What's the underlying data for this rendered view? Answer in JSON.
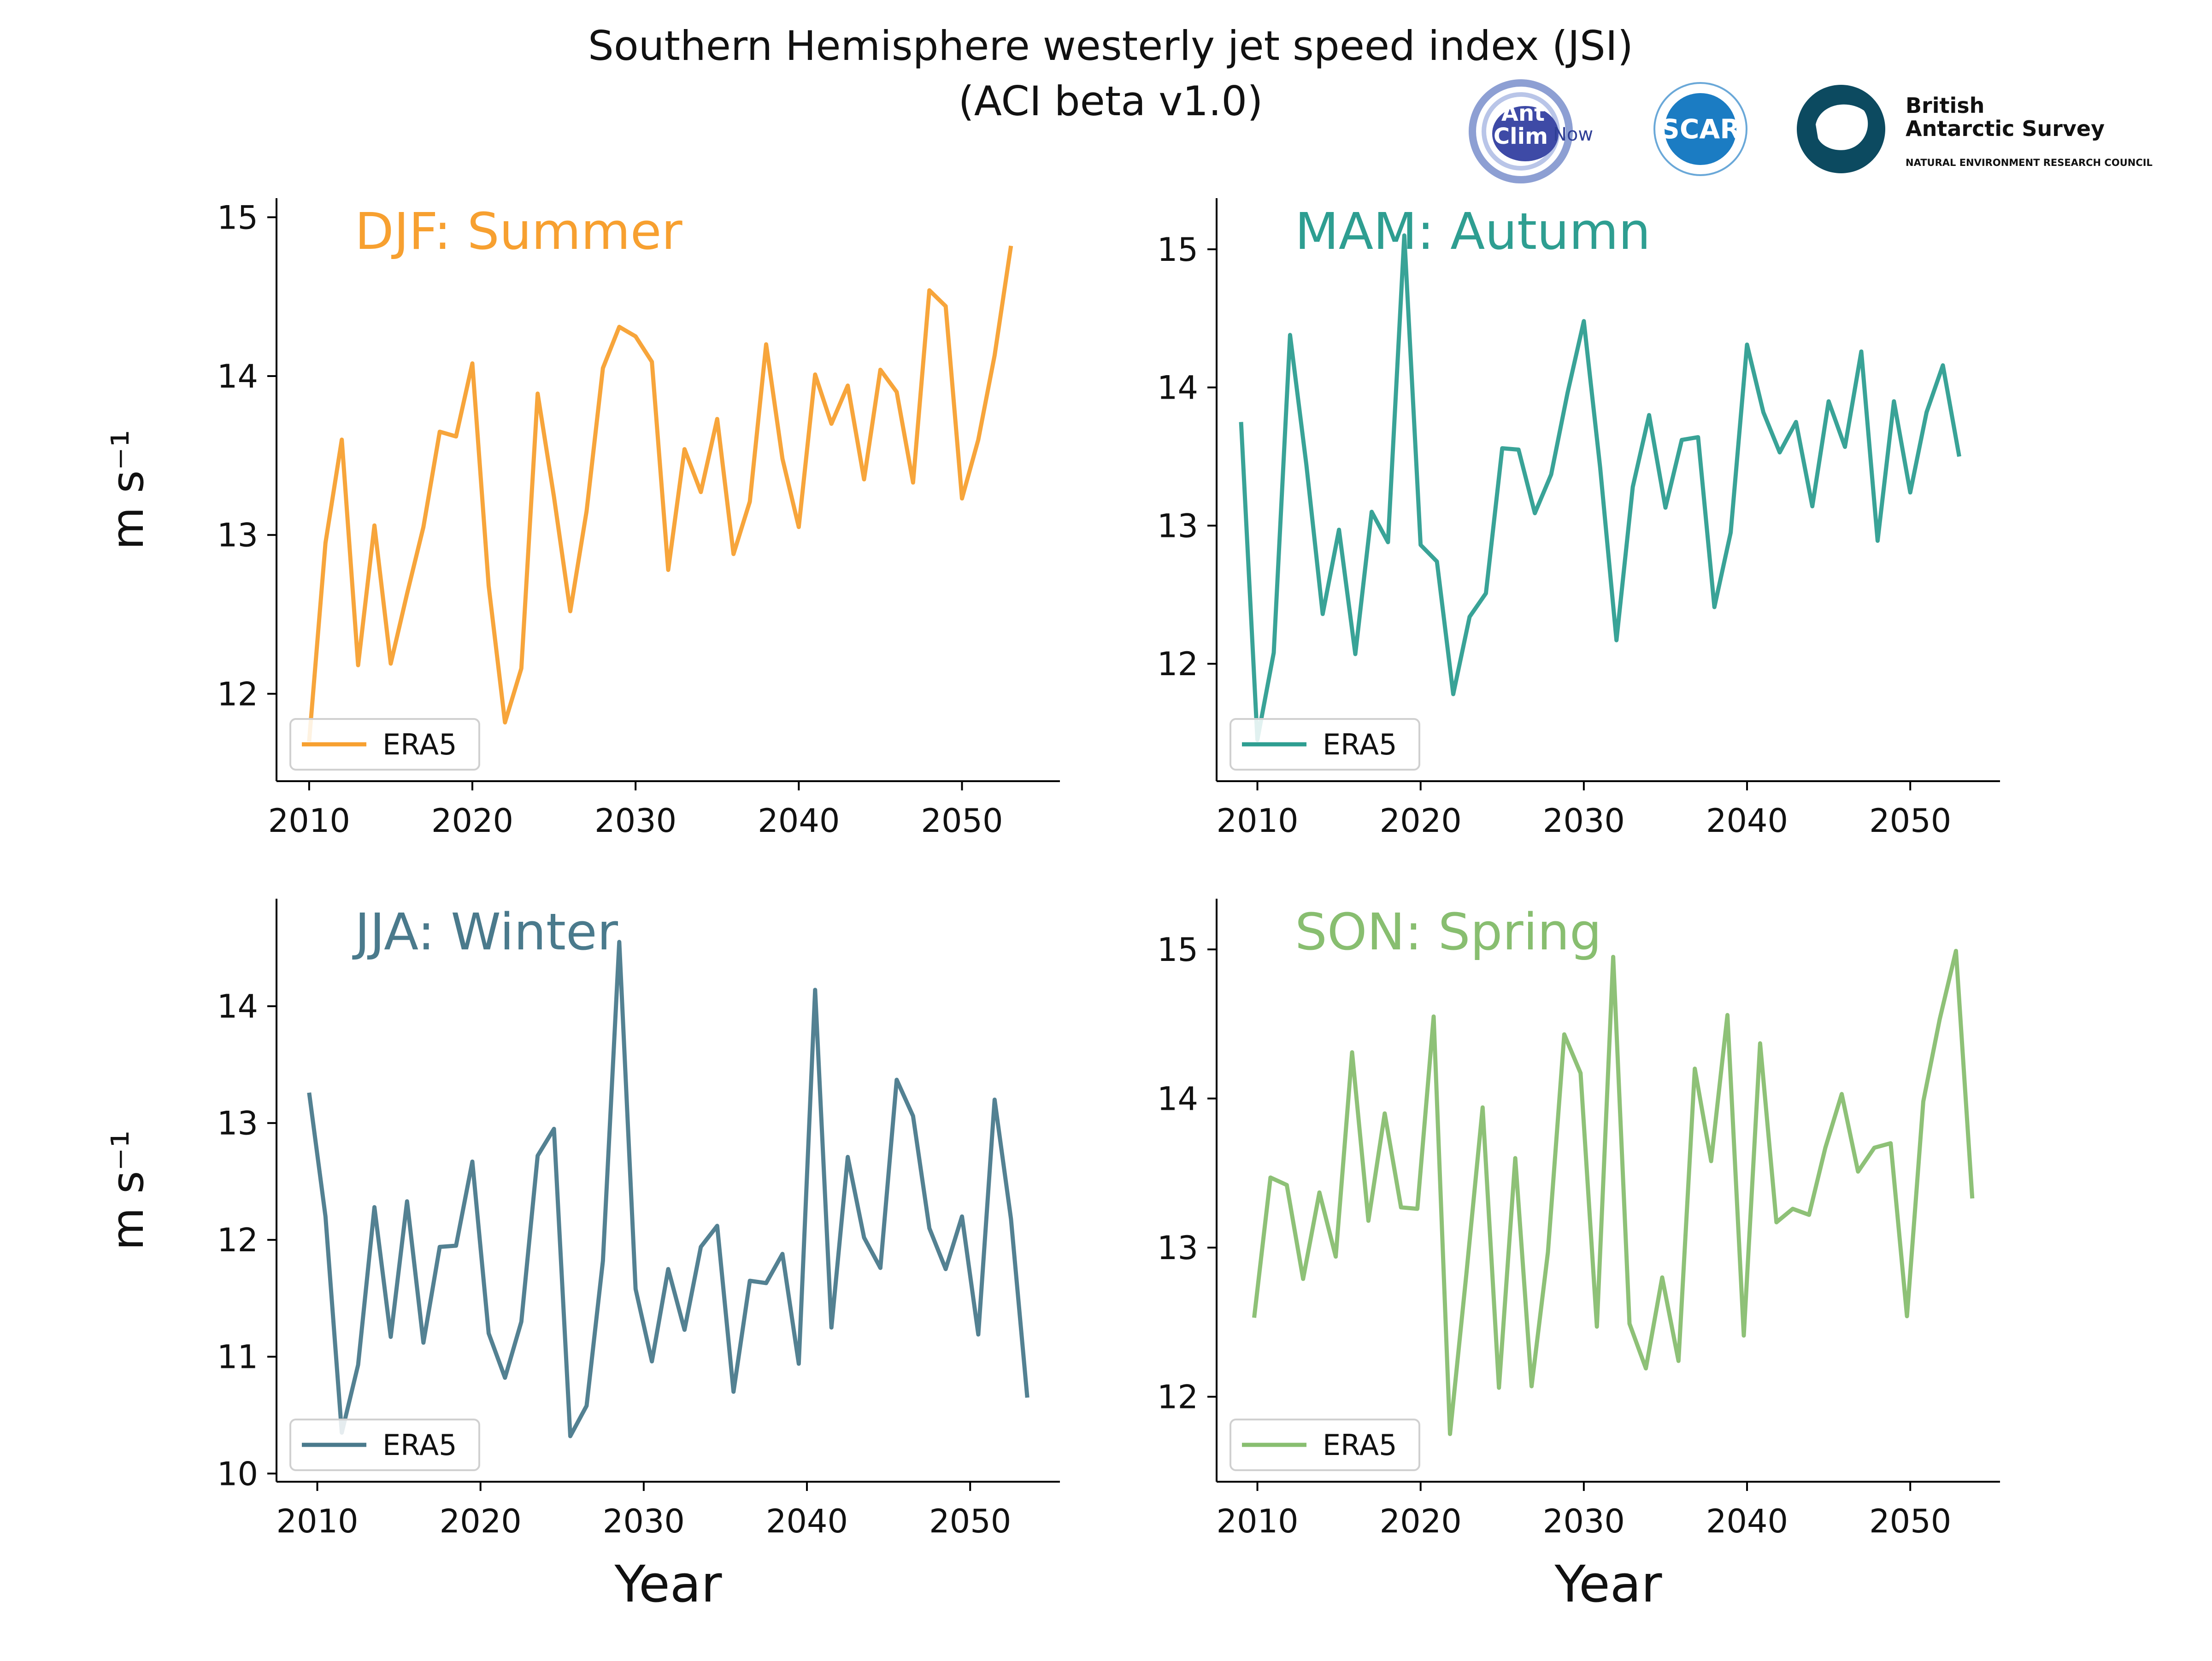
{
  "figure": {
    "title_line1": "Southern Hemisphere westerly jet speed index (JSI)",
    "title_line2": "(ACI beta v1.0)"
  },
  "logos": {
    "antclim": {
      "line1": "Ant",
      "line2": "Clim",
      "suffix": "Now"
    },
    "scar": {
      "text": "SCAR"
    },
    "bas": {
      "line1": "British",
      "line2": "Antarctic Survey",
      "line3": "NATURAL ENVIRONMENT RESEARCH COUNCIL"
    }
  },
  "chart_data": [
    {
      "type": "line",
      "title": "DJF: Summer",
      "color": "#f7a030",
      "xlabel": "",
      "ylabel": "m s⁻¹",
      "xlim": [
        2008,
        2056
      ],
      "ylim": [
        11.45,
        15.12
      ],
      "xticks": [
        2010,
        2020,
        2030,
        2040,
        2050
      ],
      "yticks": [
        12,
        13,
        14,
        15
      ],
      "legend": "lower-left",
      "series": [
        {
          "name": "ERA5",
          "x": [
            2010,
            2011,
            2012,
            2013,
            2014,
            2015,
            2016,
            2017,
            2018,
            2019,
            2020,
            2021,
            2022,
            2023,
            2024,
            2025,
            2026,
            2027,
            2028,
            2029,
            2030,
            2031,
            2032,
            2033,
            2034,
            2035,
            2036,
            2037,
            2038,
            2039,
            2040,
            2041,
            2042,
            2043,
            2044,
            2045,
            2046,
            2047,
            2048,
            2049,
            2050,
            2051,
            2052,
            2053
          ],
          "y": [
            11.7,
            12.95,
            13.6,
            12.18,
            13.06,
            12.19,
            12.63,
            13.05,
            13.65,
            13.62,
            14.08,
            12.68,
            11.82,
            12.16,
            13.89,
            13.24,
            12.52,
            13.15,
            14.05,
            14.31,
            14.25,
            14.09,
            12.78,
            13.54,
            13.27,
            13.73,
            12.88,
            13.21,
            14.2,
            13.48,
            13.05,
            14.01,
            13.7,
            13.94,
            13.35,
            14.04,
            13.9,
            13.33,
            14.54,
            14.44,
            13.23,
            13.6,
            14.13,
            14.82
          ]
        }
      ]
    },
    {
      "type": "line",
      "title": "MAM: Autumn",
      "color": "#2e9e91",
      "xlabel": "",
      "ylabel": "",
      "xlim": [
        2007.5,
        2055.5
      ],
      "ylim": [
        11.15,
        15.37
      ],
      "xticks": [
        2010,
        2020,
        2030,
        2040,
        2050
      ],
      "yticks": [
        12,
        13,
        14,
        15
      ],
      "legend": "lower-left",
      "series": [
        {
          "name": "ERA5",
          "x": [
            2009,
            2010,
            2011,
            2012,
            2013,
            2014,
            2015,
            2016,
            2017,
            2018,
            2019,
            2020,
            2021,
            2022,
            2023,
            2024,
            2025,
            2026,
            2027,
            2028,
            2029,
            2030,
            2031,
            2032,
            2033,
            2034,
            2035,
            2036,
            2037,
            2038,
            2039,
            2040,
            2041,
            2042,
            2043,
            2044,
            2045,
            2046,
            2047,
            2048,
            2049,
            2050,
            2051,
            2052,
            2053
          ],
          "y": [
            13.75,
            11.45,
            12.08,
            14.38,
            13.44,
            12.36,
            12.97,
            12.07,
            13.1,
            12.88,
            15.1,
            12.86,
            12.74,
            11.78,
            12.34,
            12.51,
            13.56,
            13.55,
            13.09,
            13.37,
            13.96,
            14.48,
            13.42,
            12.17,
            13.28,
            13.8,
            13.13,
            13.62,
            13.64,
            12.41,
            12.95,
            14.31,
            13.82,
            13.53,
            13.75,
            13.14,
            13.9,
            13.57,
            14.26,
            12.89,
            13.9,
            13.24,
            13.82,
            14.16,
            13.5
          ]
        }
      ]
    },
    {
      "type": "line",
      "title": "JJA: Winter",
      "color": "#4a7a8c",
      "xlabel": "Year",
      "ylabel": "m s⁻¹",
      "xlim": [
        2007.5,
        2055.5
      ],
      "ylim": [
        9.93,
        14.92
      ],
      "xticks": [
        2010,
        2020,
        2030,
        2040,
        2050
      ],
      "yticks": [
        10,
        11,
        12,
        13,
        14
      ],
      "legend": "lower-left",
      "series": [
        {
          "name": "ERA5",
          "x": [
            2009.5,
            2010.5,
            2011.5,
            2012.5,
            2013.5,
            2014.5,
            2015.5,
            2016.5,
            2017.5,
            2018.5,
            2019.5,
            2020.5,
            2021.5,
            2022.5,
            2023.5,
            2024.5,
            2025.5,
            2026.5,
            2027.5,
            2028.5,
            2029.5,
            2030.5,
            2031.5,
            2032.5,
            2033.5,
            2034.5,
            2035.5,
            2036.5,
            2037.5,
            2038.5,
            2039.5,
            2040.5,
            2041.5,
            2042.5,
            2043.5,
            2044.5,
            2045.5,
            2046.5,
            2047.5,
            2048.5,
            2049.5,
            2050.5,
            2051.5,
            2052.5,
            2053.5
          ],
          "y": [
            13.26,
            12.2,
            10.35,
            10.93,
            12.28,
            11.17,
            12.33,
            11.12,
            11.94,
            11.95,
            12.67,
            11.2,
            10.82,
            11.3,
            12.72,
            12.95,
            10.32,
            10.58,
            11.82,
            14.55,
            11.58,
            10.96,
            11.75,
            11.23,
            11.94,
            12.12,
            10.7,
            11.65,
            11.63,
            11.88,
            10.94,
            14.14,
            11.25,
            12.71,
            12.02,
            11.76,
            13.37,
            13.06,
            12.1,
            11.75,
            12.2,
            11.19,
            13.2,
            12.18,
            10.65
          ]
        }
      ]
    },
    {
      "type": "line",
      "title": "SON: Spring",
      "color": "#88be70",
      "xlabel": "Year",
      "ylabel": "",
      "xlim": [
        2007.5,
        2055.5
      ],
      "ylim": [
        11.43,
        15.34
      ],
      "xticks": [
        2010,
        2020,
        2030,
        2040,
        2050
      ],
      "yticks": [
        12,
        13,
        14,
        15
      ],
      "legend": "lower-left",
      "series": [
        {
          "name": "ERA5",
          "x": [
            2009.8,
            2010.8,
            2011.8,
            2012.8,
            2013.8,
            2014.8,
            2015.8,
            2016.8,
            2017.8,
            2018.8,
            2019.8,
            2020.8,
            2021.8,
            2022.8,
            2023.8,
            2024.8,
            2025.8,
            2026.8,
            2027.8,
            2028.8,
            2029.8,
            2030.8,
            2031.8,
            2032.8,
            2033.8,
            2034.8,
            2035.8,
            2036.8,
            2037.8,
            2038.8,
            2039.8,
            2040.8,
            2041.8,
            2042.8,
            2043.8,
            2044.8,
            2045.8,
            2046.8,
            2047.8,
            2048.8,
            2049.8,
            2050.8,
            2051.8,
            2052.8,
            2053.8
          ],
          "y": [
            12.53,
            13.47,
            13.42,
            12.79,
            13.37,
            12.94,
            14.31,
            13.18,
            13.9,
            13.27,
            13.26,
            14.55,
            11.75,
            12.82,
            13.94,
            12.06,
            13.6,
            12.07,
            12.97,
            14.43,
            14.17,
            12.47,
            14.95,
            12.49,
            12.19,
            12.8,
            12.24,
            14.2,
            13.58,
            14.56,
            12.41,
            14.37,
            13.17,
            13.26,
            13.22,
            13.67,
            14.03,
            13.51,
            13.67,
            13.7,
            12.54,
            13.98,
            14.53,
            14.99,
            13.33
          ]
        }
      ]
    }
  ]
}
